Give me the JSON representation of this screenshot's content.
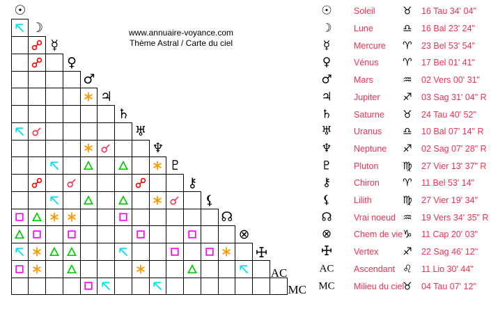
{
  "header": {
    "url": "www.annuaire-voyance.com",
    "subtitle": "Thème Astral / Carte du ciel"
  },
  "colors": {
    "text_red": "#f23052",
    "glyph_black": "#000000",
    "aspects": {
      "conjunction": "#f23052",
      "opposition": "#ff0000",
      "trine": "#00cc00",
      "square": "#ff00ff",
      "sextile": "#ff9900",
      "quincunx": "#00ddff"
    }
  },
  "planets": [
    {
      "name": "Soleil",
      "glyph": "☉",
      "glyph_name": "sun-icon",
      "sign_glyph": "♉",
      "sign_name": "taurus-icon",
      "position": "16 Tau 34' 04\""
    },
    {
      "name": "Lune",
      "glyph": "☽",
      "glyph_name": "moon-icon",
      "sign_glyph": "♎",
      "sign_name": "libra-icon",
      "position": "16 Bal 23' 24\""
    },
    {
      "name": "Mercure",
      "glyph": "☿",
      "glyph_name": "mercury-icon",
      "sign_glyph": "♈",
      "sign_name": "aries-icon",
      "position": "23 Bel 53' 54\""
    },
    {
      "name": "Vénus",
      "glyph": "♀",
      "glyph_name": "venus-icon",
      "sign_glyph": "♈",
      "sign_name": "aries-icon",
      "position": "17 Bel 01' 41\""
    },
    {
      "name": "Mars",
      "glyph": "♂",
      "glyph_name": "mars-icon",
      "sign_glyph": "♒",
      "sign_name": "aquarius-icon",
      "position": "02 Vers 00' 31\""
    },
    {
      "name": "Jupiter",
      "glyph": "♃",
      "glyph_name": "jupiter-icon",
      "sign_glyph": "♐",
      "sign_name": "sagittarius-icon",
      "position": "03 Sag 31' 04\" R"
    },
    {
      "name": "Saturne",
      "glyph": "♄",
      "glyph_name": "saturn-icon",
      "sign_glyph": "♉",
      "sign_name": "taurus-icon",
      "position": "24 Tau 40' 52\""
    },
    {
      "name": "Uranus",
      "glyph": "♅",
      "glyph_name": "uranus-icon",
      "sign_glyph": "♎",
      "sign_name": "libra-icon",
      "position": "10 Bal 07' 14\" R"
    },
    {
      "name": "Neptune",
      "glyph": "♆",
      "glyph_name": "neptune-icon",
      "sign_glyph": "♐",
      "sign_name": "sagittarius-icon",
      "position": "02 Sag 07' 28\" R"
    },
    {
      "name": "Pluton",
      "glyph": "♇",
      "glyph_name": "pluto-icon",
      "sign_glyph": "♍",
      "sign_name": "virgo-icon",
      "position": "27 Vier 13' 37\" R"
    },
    {
      "name": "Chiron",
      "glyph": "⚷",
      "glyph_name": "chiron-icon",
      "sign_glyph": "♈",
      "sign_name": "aries-icon",
      "position": "11 Bel 53' 14\""
    },
    {
      "name": "Lilith",
      "glyph": "⚸",
      "glyph_name": "lilith-icon",
      "sign_glyph": "♍",
      "sign_name": "virgo-icon",
      "position": "27 Vier 19' 34\""
    },
    {
      "name": "Vrai noeud",
      "glyph": "☊",
      "glyph_name": "north-node-icon",
      "sign_glyph": "♒",
      "sign_name": "aquarius-icon",
      "position": "19 Vers 34' 35\" R"
    },
    {
      "name": "Chem de vie",
      "glyph": "⊗",
      "glyph_name": "part-of-fortune-icon",
      "sign_glyph": "♑",
      "sign_name": "capricorn-icon",
      "position": "11 Cap 20' 03\""
    },
    {
      "name": "Vertex",
      "glyph": "VX",
      "glyph_name": "vertex-cross-icon",
      "sign_glyph": "♐",
      "sign_name": "sagittarius-icon",
      "position": "22 Sag 46' 12\""
    },
    {
      "name": "Ascendant",
      "glyph": "AC",
      "glyph_name": "ascendant-label",
      "sign_glyph": "♌",
      "sign_name": "leo-icon",
      "position": "11 Lio 30' 44\""
    },
    {
      "name": "Milieu du ciel",
      "glyph": "MC",
      "glyph_name": "midheaven-label",
      "sign_glyph": "♉",
      "sign_name": "taurus-icon",
      "position": "04 Tau 07' 12\""
    }
  ],
  "aspect_grid": {
    "note": "rows are lower-triangular aspectarian; columns follow same planet order as the planets list",
    "rows": [
      {
        "planet": "Lune",
        "aspects": [
          "quincunx"
        ]
      },
      {
        "planet": "Mercure",
        "aspects": [
          null,
          "opposition"
        ]
      },
      {
        "planet": "Vénus",
        "aspects": [
          null,
          "opposition",
          null
        ]
      },
      {
        "planet": "Mars",
        "aspects": [
          null,
          null,
          null,
          null
        ]
      },
      {
        "planet": "Jupiter",
        "aspects": [
          null,
          null,
          null,
          null,
          "sextile"
        ]
      },
      {
        "planet": "Saturne",
        "aspects": [
          null,
          null,
          null,
          null,
          null,
          null
        ]
      },
      {
        "planet": "Uranus",
        "aspects": [
          "quincunx",
          "conjunction",
          null,
          null,
          null,
          null,
          null
        ]
      },
      {
        "planet": "Neptune",
        "aspects": [
          null,
          null,
          null,
          null,
          "sextile",
          "conjunction",
          null,
          null
        ]
      },
      {
        "planet": "Pluton",
        "aspects": [
          null,
          null,
          "quincunx",
          null,
          "trine",
          null,
          "trine",
          null,
          "sextile"
        ]
      },
      {
        "planet": "Chiron",
        "aspects": [
          null,
          "opposition",
          null,
          "conjunction",
          null,
          null,
          null,
          "opposition",
          null,
          null
        ]
      },
      {
        "planet": "Lilith",
        "aspects": [
          null,
          null,
          "quincunx",
          null,
          "trine",
          null,
          "trine",
          null,
          "sextile",
          "conjunction",
          null
        ]
      },
      {
        "planet": "Vrai noeud",
        "aspects": [
          "square",
          "trine",
          "sextile",
          "sextile",
          null,
          null,
          "square",
          null,
          null,
          null,
          null,
          null
        ]
      },
      {
        "planet": "Chem de vie",
        "aspects": [
          "trine",
          "square",
          null,
          "square",
          null,
          null,
          null,
          "square",
          null,
          null,
          "square",
          null,
          null
        ]
      },
      {
        "planet": "Vertex",
        "aspects": [
          "quincunx",
          "sextile",
          "trine",
          "trine",
          null,
          null,
          "quincunx",
          null,
          null,
          "square",
          null,
          "square",
          "sextile",
          null
        ]
      },
      {
        "planet": "Ascendant",
        "aspects": [
          "square",
          "sextile",
          null,
          "trine",
          null,
          null,
          null,
          "sextile",
          null,
          null,
          "trine",
          null,
          null,
          "quincunx",
          null
        ]
      },
      {
        "planet": "Milieu du ciel",
        "aspects": [
          null,
          null,
          null,
          null,
          "square",
          "quincunx",
          null,
          null,
          "quincunx",
          null,
          null,
          null,
          null,
          null,
          null,
          null
        ]
      }
    ]
  }
}
